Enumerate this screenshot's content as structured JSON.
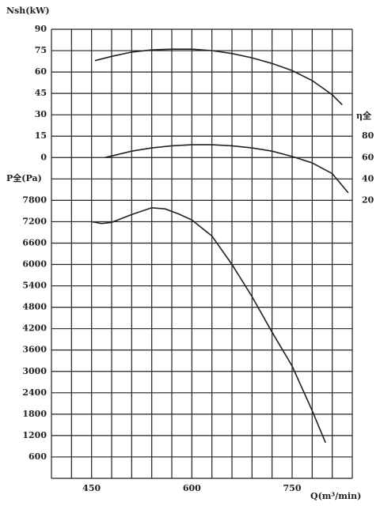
{
  "chart_data": {
    "type": "line",
    "y_title": "Nsh(kW)",
    "y2_title": "P全(Pa)",
    "y3_title": "η全",
    "x_title": "Q(m³/min)",
    "xlim": [
      390,
      840
    ],
    "xticks": [
      450,
      600,
      750
    ],
    "xgrid_step": 30,
    "ylim": [
      -225,
      90
    ],
    "yticks": [
      90,
      75,
      60,
      45,
      30,
      15,
      0
    ],
    "y2lim": [
      0,
      12600
    ],
    "y2ticks": [
      7800,
      7200,
      6600,
      6000,
      5400,
      4800,
      4200,
      3600,
      3000,
      2400,
      1800,
      1200,
      600
    ],
    "y2grid_step": 600,
    "y3lim": [
      -240,
      180
    ],
    "y3ticks": [
      80,
      60,
      40,
      20
    ],
    "grid": true,
    "series": [
      {
        "axis": "y",
        "color": "#222222",
        "x": [
          455,
          480,
          510,
          540,
          570,
          600,
          630,
          660,
          690,
          720,
          750,
          780,
          810,
          825
        ],
        "values": [
          68,
          71,
          74,
          75.5,
          76,
          76,
          75,
          73,
          70,
          66,
          61,
          54,
          44,
          37
        ]
      },
      {
        "axis": "y3",
        "color": "#222222",
        "x": [
          470,
          510,
          540,
          570,
          600,
          630,
          660,
          690,
          720,
          750,
          780,
          810,
          834
        ],
        "values": [
          60,
          66,
          69,
          71,
          72,
          72,
          71,
          69,
          66,
          61,
          55,
          45,
          27
        ]
      },
      {
        "axis": "y2",
        "color": "#222222",
        "x": [
          450,
          465,
          480,
          510,
          540,
          560,
          580,
          600,
          630,
          660,
          690,
          720,
          750,
          780,
          800
        ],
        "values": [
          7200,
          7150,
          7180,
          7400,
          7590,
          7560,
          7420,
          7250,
          6800,
          6000,
          5100,
          4100,
          3150,
          1900,
          1000
        ]
      }
    ]
  }
}
